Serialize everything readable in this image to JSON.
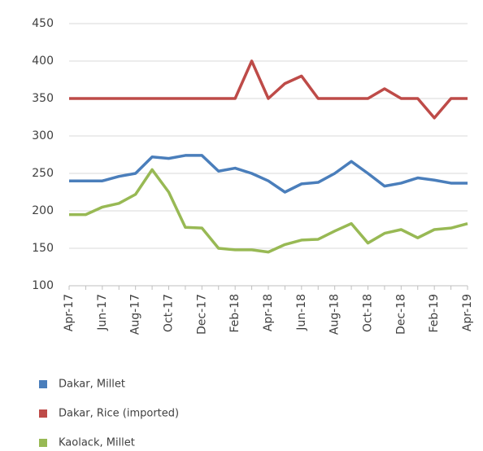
{
  "chart_data": {
    "type": "line",
    "categories": [
      "Apr-17",
      null,
      "Jun-17",
      null,
      "Aug-17",
      null,
      "Oct-17",
      null,
      "Dec-17",
      null,
      "Feb-18",
      null,
      "Apr-18",
      null,
      "Jun-18",
      null,
      "Aug-18",
      null,
      "Oct-18",
      null,
      "Dec-18",
      null,
      "Feb-19",
      null,
      "Apr-19"
    ],
    "series": [
      {
        "name": "Dakar, Millet",
        "color": "#4a7ebb",
        "values": [
          240,
          240,
          240,
          246,
          250,
          272,
          270,
          274,
          274,
          253,
          257,
          250,
          240,
          225,
          236,
          238,
          250,
          266,
          250,
          233,
          237,
          244,
          241,
          237,
          237
        ]
      },
      {
        "name": "Dakar, Rice (imported)",
        "color": "#be4b48",
        "values": [
          350,
          350,
          350,
          350,
          350,
          350,
          350,
          350,
          350,
          350,
          350,
          400,
          350,
          370,
          380,
          350,
          350,
          350,
          350,
          363,
          350,
          350,
          324,
          350,
          350
        ]
      },
      {
        "name": "Kaolack, Millet",
        "color": "#98b954",
        "values": [
          195,
          195,
          205,
          210,
          222,
          255,
          225,
          178,
          177,
          150,
          148,
          148,
          145,
          155,
          161,
          162,
          173,
          183,
          157,
          170,
          175,
          164,
          175,
          177,
          183
        ]
      }
    ],
    "ylim": [
      100,
      450
    ],
    "yticks": [
      100,
      150,
      200,
      250,
      300,
      350,
      400,
      450
    ],
    "grid": true,
    "legend": "bottom"
  }
}
